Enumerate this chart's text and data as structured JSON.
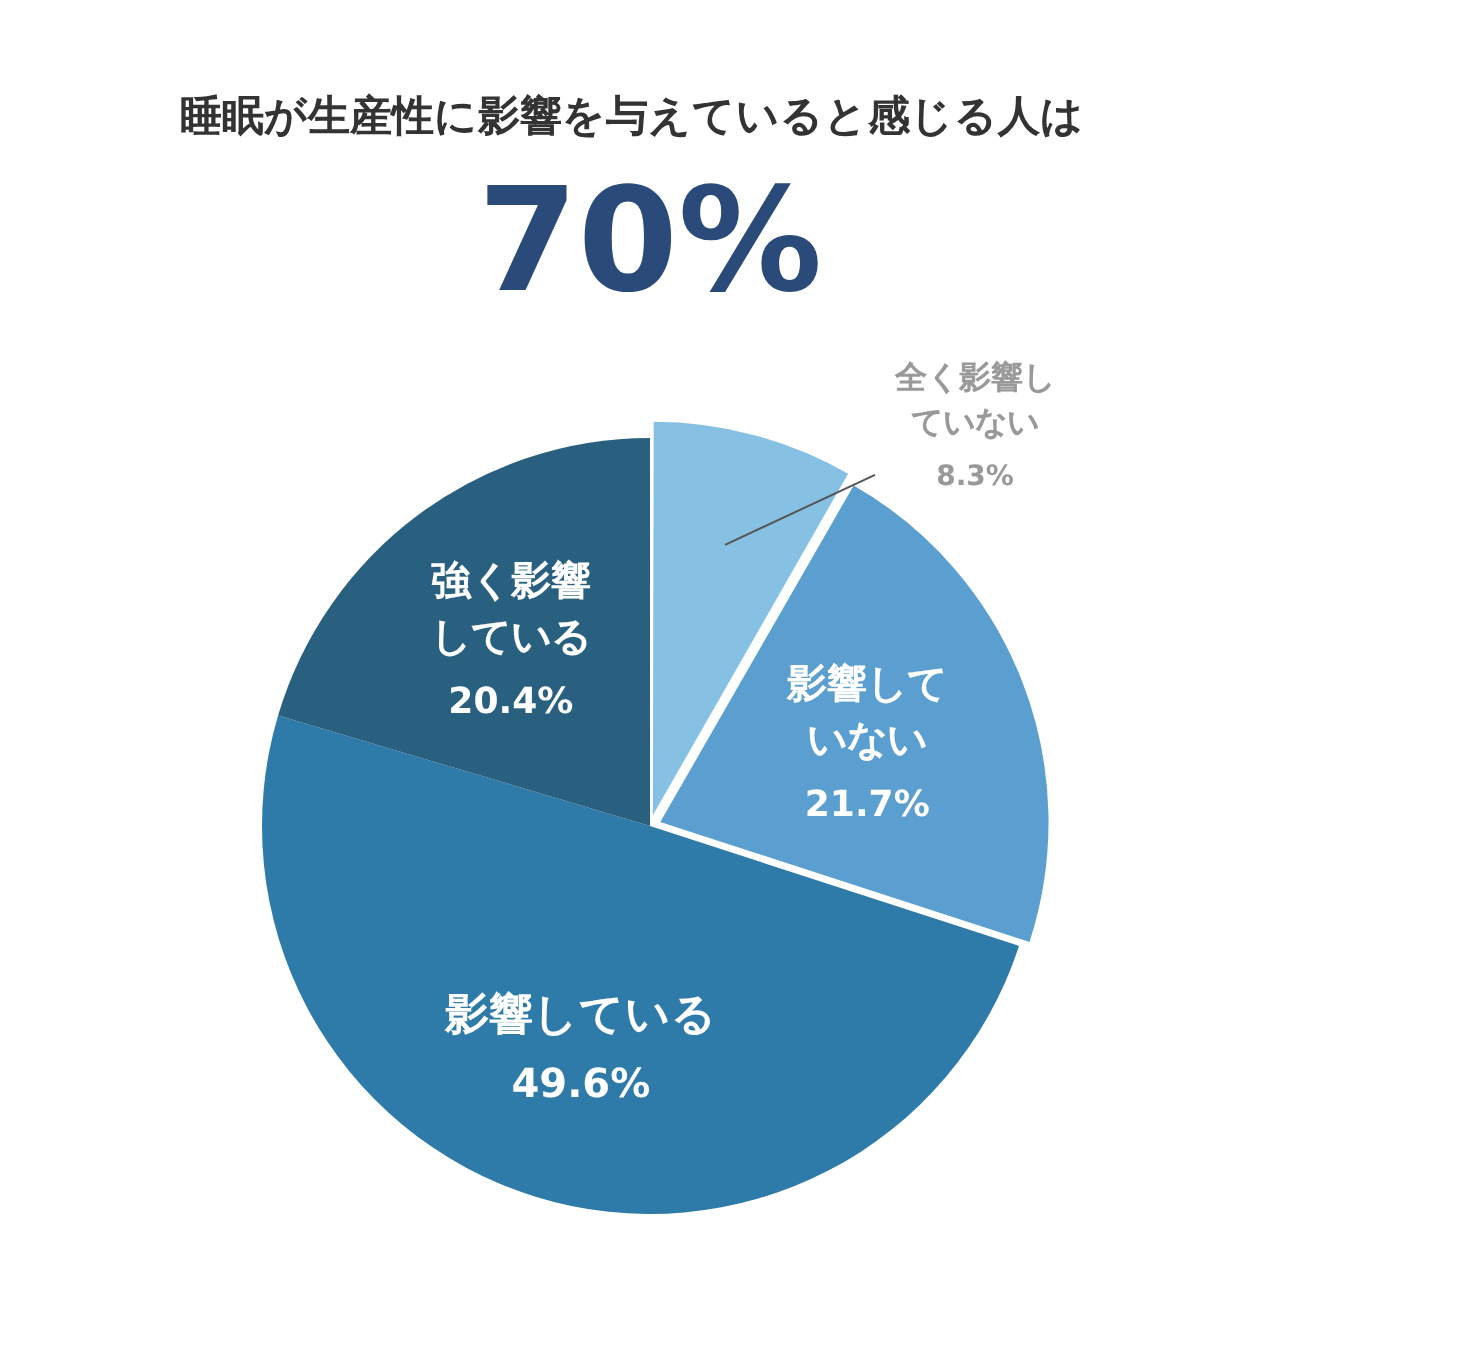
{
  "chart_data": {
    "type": "pie",
    "title": "睡眠が生産性に影響を与えていると感じる人は",
    "subtitle": "70%",
    "categories": [
      "全く影響していない",
      "影響していない",
      "影響している",
      "強く影響している"
    ],
    "values": [
      8.3,
      21.7,
      49.6,
      20.4
    ],
    "colors": [
      "#86c1e3",
      "#5b9fd0",
      "#2e7aa8",
      "#29607f"
    ],
    "value_labels": [
      "8.3%",
      "21.7%",
      "49.6%",
      "20.4%"
    ],
    "legend": false
  }
}
